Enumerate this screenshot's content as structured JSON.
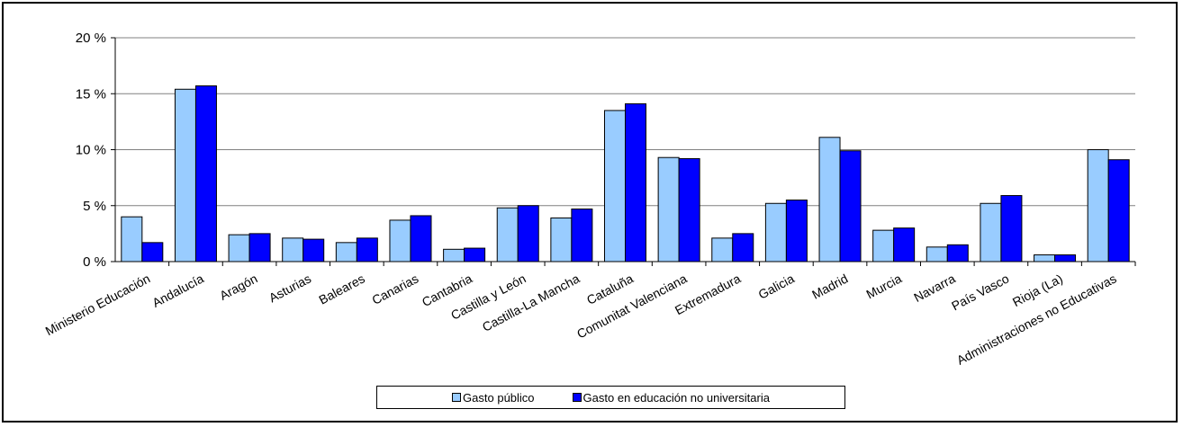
{
  "chart_data": {
    "type": "bar",
    "categories": [
      "Ministerio Educación",
      "Andalucía",
      "Aragón",
      "Asturias",
      "Baleares",
      "Canarias",
      "Cantabria",
      "Castilla y León",
      "Castilla-La Mancha",
      "Cataluña",
      "Comunitat Valenciana",
      "Extremadura",
      "Galicia",
      "Madrid",
      "Murcia",
      "Navarra",
      "País Vasco",
      "Rioja (La)",
      "Administraciones no Educativas"
    ],
    "series": [
      {
        "name": "Gasto público",
        "color": "#99ccff",
        "values": [
          4.0,
          15.4,
          2.4,
          2.1,
          1.7,
          3.7,
          1.1,
          4.8,
          3.9,
          13.5,
          9.3,
          2.1,
          5.2,
          11.1,
          2.8,
          1.3,
          5.2,
          0.6,
          10.0
        ]
      },
      {
        "name": "Gasto en educación no universitaria",
        "color": "#0000ff",
        "values": [
          1.7,
          15.7,
          2.5,
          2.0,
          2.1,
          4.1,
          1.2,
          5.0,
          4.7,
          14.1,
          9.2,
          2.5,
          5.5,
          9.9,
          3.0,
          1.5,
          5.9,
          0.6,
          9.1
        ]
      }
    ],
    "y_ticks": [
      "0 %",
      "5 %",
      "10 %",
      "15 %",
      "20 %"
    ],
    "ylim": [
      0,
      20
    ],
    "grid": true,
    "legend_position": "bottom"
  }
}
